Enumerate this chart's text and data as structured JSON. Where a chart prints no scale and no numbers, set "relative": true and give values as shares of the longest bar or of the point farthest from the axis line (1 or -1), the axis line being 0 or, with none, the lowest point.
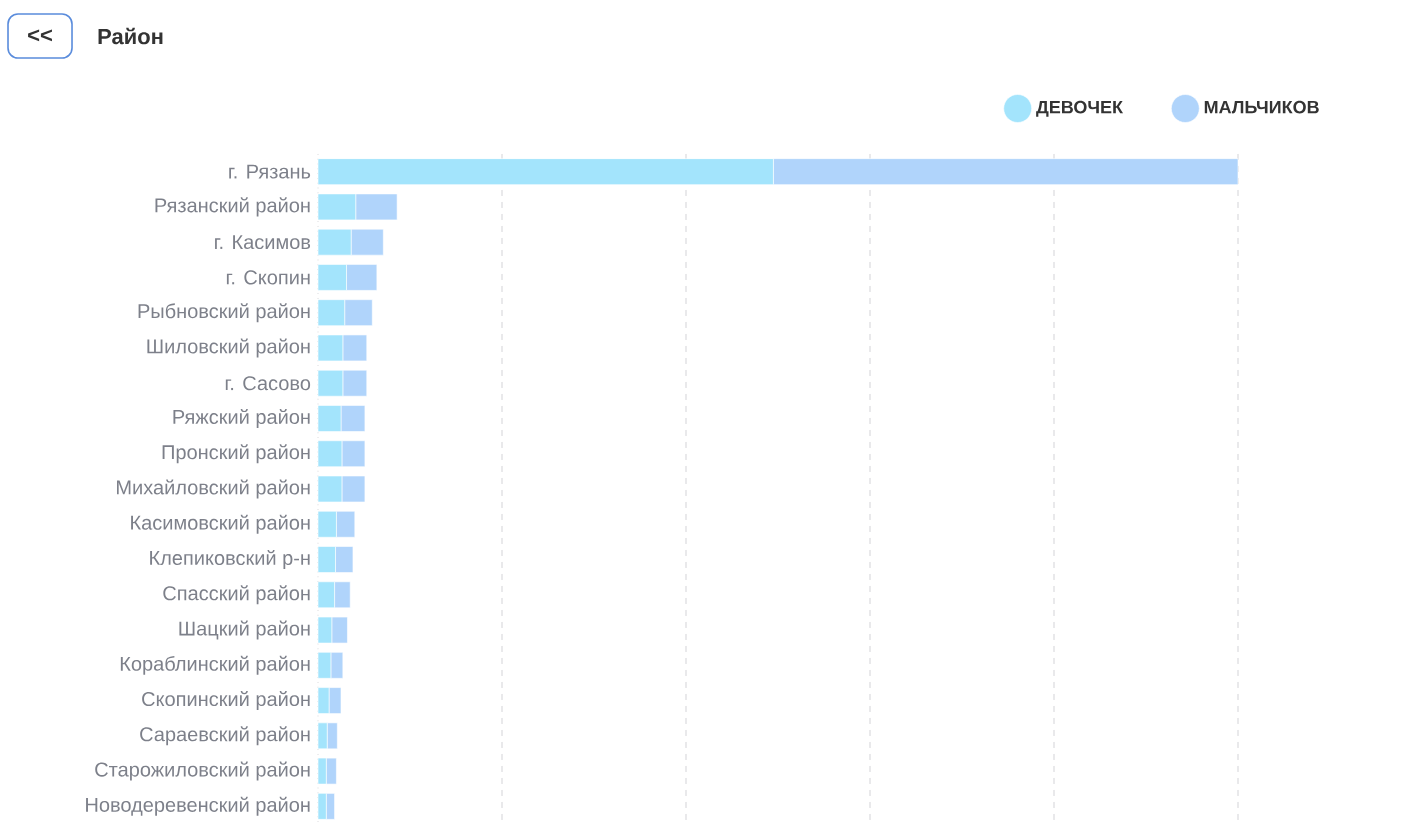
{
  "chart_data": {
    "type": "bar",
    "orientation": "horizontal",
    "stacked": true,
    "relative": true,
    "title": "Район",
    "annotations": [
      "<<"
    ],
    "categories": [
      "г. Рязань",
      "Рязанский район",
      "г. Касимов",
      "г. Скопин",
      "Рыбновский район",
      "Шиловский район",
      "г. Сасово",
      "Ряжский район",
      "Пронский район",
      "Михайловский район",
      "Касимовский район",
      "Клепиковский р-н",
      "Спасский район",
      "Шацкий район",
      "Кораблинский район",
      "Скопинский район",
      "Сараевский район",
      "Старожиловский район",
      "Новодеревенский район"
    ],
    "series": [
      {
        "name": "ДЕВОЧЕК",
        "color": "#a3e4fc",
        "values": [
          0.495,
          0.041,
          0.036,
          0.031,
          0.029,
          0.027,
          0.027,
          0.025,
          0.026,
          0.026,
          0.02,
          0.019,
          0.018,
          0.015,
          0.014,
          0.012,
          0.01,
          0.009,
          0.009
        ]
      },
      {
        "name": "МАЛЬЧИКОВ",
        "color": "#b0d4fb",
        "values": [
          0.505,
          0.045,
          0.035,
          0.033,
          0.03,
          0.026,
          0.026,
          0.026,
          0.025,
          0.025,
          0.02,
          0.019,
          0.017,
          0.017,
          0.013,
          0.013,
          0.011,
          0.011,
          0.009
        ]
      }
    ],
    "grid": "x",
    "legend": "top right"
  }
}
